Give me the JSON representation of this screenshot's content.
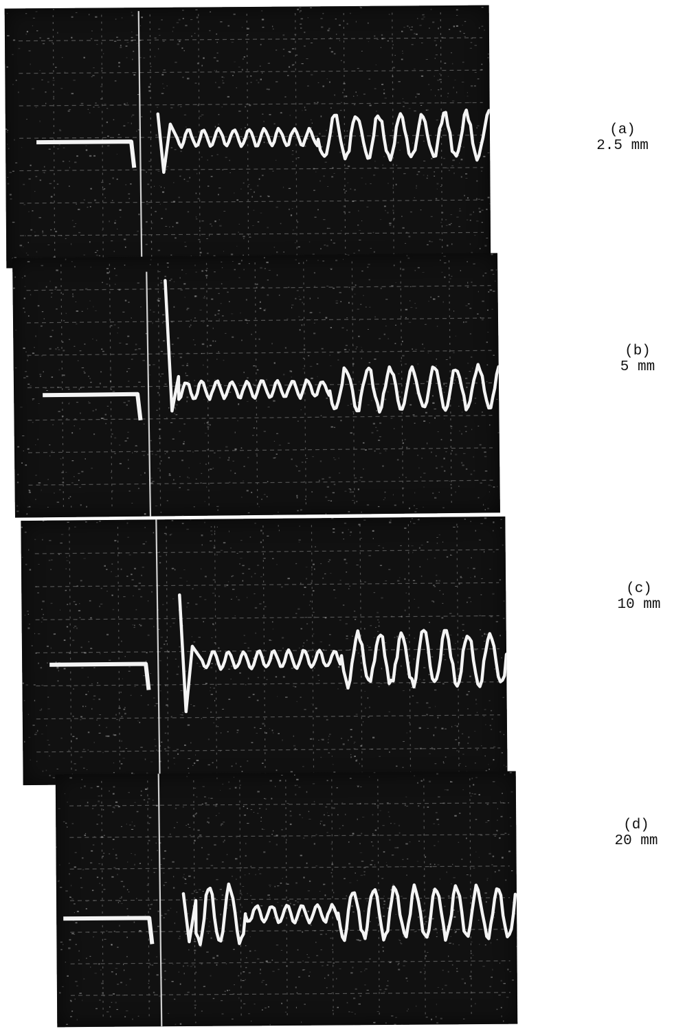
{
  "figure": {
    "panels": [
      {
        "id": "a",
        "letter": "(a)",
        "size": "2.5 mm"
      },
      {
        "id": "b",
        "letter": "(b)",
        "size": "5 mm"
      },
      {
        "id": "c",
        "letter": "(c)",
        "size": "10 mm"
      },
      {
        "id": "d",
        "letter": "(d)",
        "size": "20 mm"
      }
    ],
    "colors": {
      "screen": "#111111",
      "trace": "#f4f4f4",
      "graticule": "#8a8a8a",
      "caption_text": "#111111"
    }
  }
}
